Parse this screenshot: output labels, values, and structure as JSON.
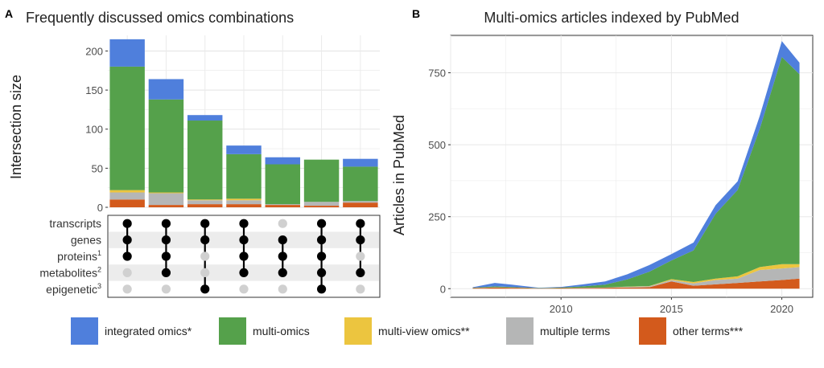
{
  "colors": {
    "integrated": "#4f7fdc",
    "multiomics": "#55a14b",
    "multiview": "#ecc53f",
    "multiple": "#b5b6b6",
    "other": "#d35a1c"
  },
  "legend": [
    {
      "key": "integrated",
      "label": "integrated omics*"
    },
    {
      "key": "multiomics",
      "label": "multi-omics"
    },
    {
      "key": "multiview",
      "label": "multi-view omics**"
    },
    {
      "key": "multiple",
      "label": "multiple terms"
    },
    {
      "key": "other",
      "label": "other terms***"
    }
  ],
  "chart_data": [
    {
      "type": "bar",
      "panel_label": "A",
      "title": "Frequently discussed omics combinations",
      "ylabel": "Intersection size",
      "ylim": [
        0,
        220
      ],
      "yticks": [
        0,
        50,
        100,
        150,
        200
      ],
      "grid": true,
      "stack_order": [
        "other",
        "multiple",
        "multiview",
        "multiomics",
        "integrated"
      ],
      "categories": [
        "1",
        "2",
        "3",
        "4",
        "5",
        "6",
        "7"
      ],
      "series": [
        {
          "key": "other",
          "values": [
            10,
            3,
            4,
            4,
            3,
            2,
            6
          ]
        },
        {
          "key": "multiple",
          "values": [
            9,
            15,
            5,
            5,
            1,
            5,
            2
          ]
        },
        {
          "key": "multiview",
          "values": [
            3,
            1,
            1,
            2,
            0,
            0,
            0
          ]
        },
        {
          "key": "multiomics",
          "values": [
            158,
            119,
            101,
            57,
            51,
            54,
            44
          ]
        },
        {
          "key": "integrated",
          "values": [
            35,
            26,
            7,
            11,
            9,
            0,
            10
          ]
        }
      ],
      "sets": [
        {
          "label": "transcripts",
          "sup": ""
        },
        {
          "label": "genes",
          "sup": ""
        },
        {
          "label": "proteins",
          "sup": "1"
        },
        {
          "label": "metabolites",
          "sup": "2"
        },
        {
          "label": "epigenetic",
          "sup": "3"
        }
      ],
      "matrix": [
        [
          1,
          1,
          1,
          0,
          0
        ],
        [
          1,
          1,
          1,
          1,
          0
        ],
        [
          1,
          1,
          0,
          0,
          1
        ],
        [
          1,
          1,
          1,
          1,
          0
        ],
        [
          0,
          1,
          1,
          1,
          0
        ],
        [
          1,
          1,
          1,
          1,
          1
        ],
        [
          1,
          1,
          0,
          1,
          0
        ]
      ]
    },
    {
      "type": "area",
      "panel_label": "B",
      "title": "Multi-omics articles indexed by PubMed",
      "ylabel": "Articles in PubMed",
      "xlim": [
        2005,
        2021.4
      ],
      "ylim": [
        -30,
        880
      ],
      "xticks": [
        2010,
        2015,
        2020
      ],
      "yticks": [
        0,
        250,
        500,
        750
      ],
      "grid": true,
      "x": [
        2006,
        2007,
        2008,
        2009,
        2010,
        2011,
        2012,
        2013,
        2014,
        2015,
        2016,
        2017,
        2018,
        2019,
        2020,
        2020.8
      ],
      "stack_order": [
        "other",
        "multiple",
        "multiview",
        "multiomics",
        "integrated"
      ],
      "series": [
        {
          "key": "other",
          "values": [
            2,
            4,
            3,
            1,
            2,
            2,
            3,
            4,
            5,
            25,
            10,
            15,
            20,
            25,
            30,
            35
          ]
        },
        {
          "key": "multiple",
          "values": [
            0,
            1,
            0,
            0,
            0,
            1,
            1,
            2,
            3,
            5,
            8,
            15,
            15,
            40,
            40,
            40
          ]
        },
        {
          "key": "multiview",
          "values": [
            0,
            0,
            0,
            0,
            0,
            0,
            0,
            1,
            1,
            3,
            5,
            5,
            8,
            10,
            15,
            10
          ]
        },
        {
          "key": "multiomics",
          "values": [
            1,
            3,
            2,
            1,
            2,
            5,
            10,
            25,
            50,
            65,
            110,
            225,
            300,
            480,
            720,
            660
          ]
        },
        {
          "key": "integrated",
          "values": [
            2,
            12,
            7,
            1,
            2,
            7,
            11,
            18,
            23,
            22,
            27,
            30,
            30,
            45,
            55,
            40
          ]
        }
      ]
    }
  ]
}
